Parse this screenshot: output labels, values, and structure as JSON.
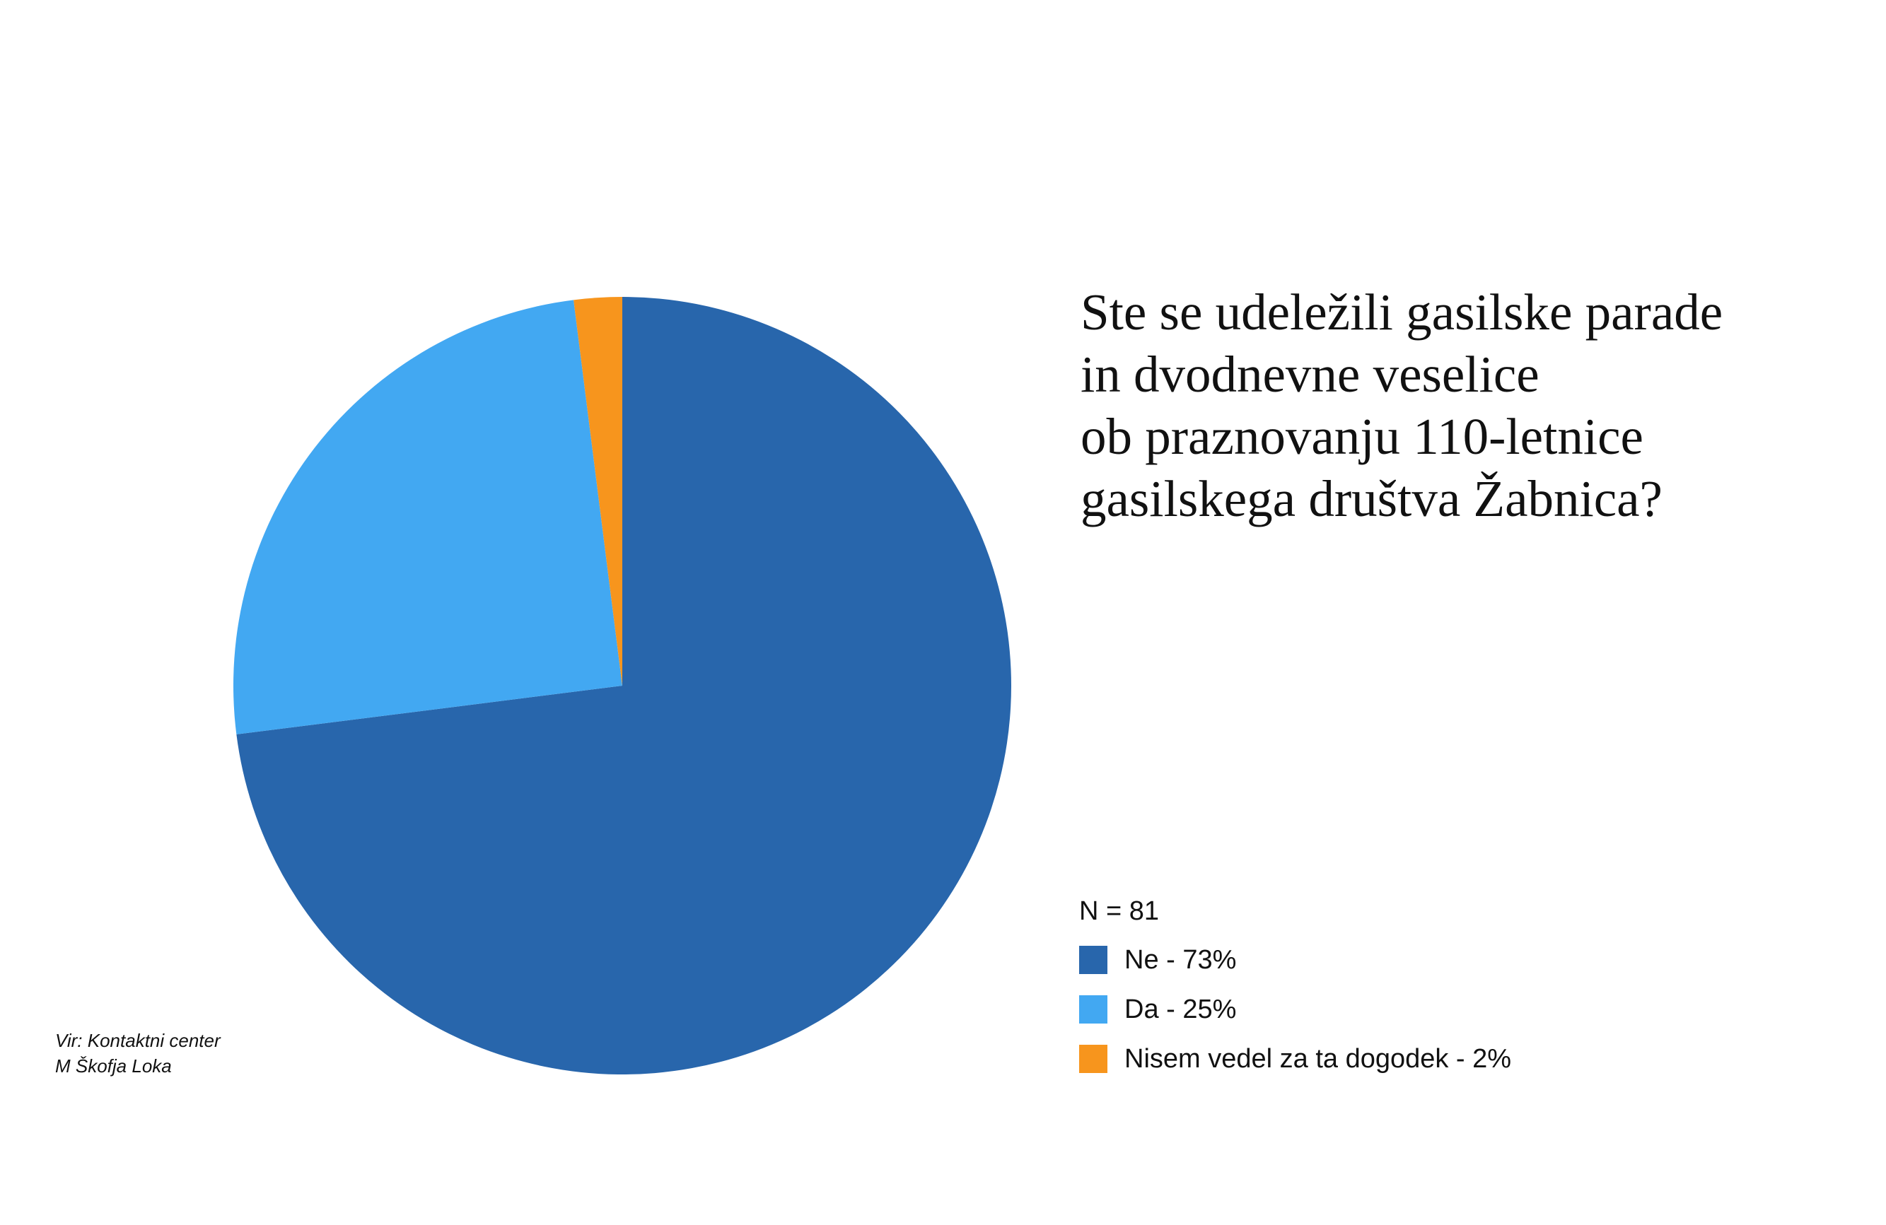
{
  "chart_data": {
    "type": "pie",
    "title": [
      "Ste se udeležili gasilske parade",
      "in dvodnevne veselice",
      "ob praznovanju 110-letnice",
      "gasilskega društva Žabnica?"
    ],
    "sample_size_label": "N = 81",
    "slices": [
      {
        "name": "Ne",
        "label": "Ne - 73%",
        "value": 73,
        "color": "#2866AC"
      },
      {
        "name": "Da",
        "label": "Da - 25%",
        "value": 25,
        "color": "#42A8F2"
      },
      {
        "name": "Nisem vedel za ta dogodek",
        "label": "Nisem vedel za ta dogodek - 2%",
        "value": 2,
        "color": "#F7951D"
      }
    ],
    "start_angle_deg": 0,
    "direction": "clockwise",
    "legend_position": "bottom-right"
  },
  "source": {
    "lines": [
      "Vir: Kontaktni center",
      "M Škofja Loka"
    ]
  }
}
